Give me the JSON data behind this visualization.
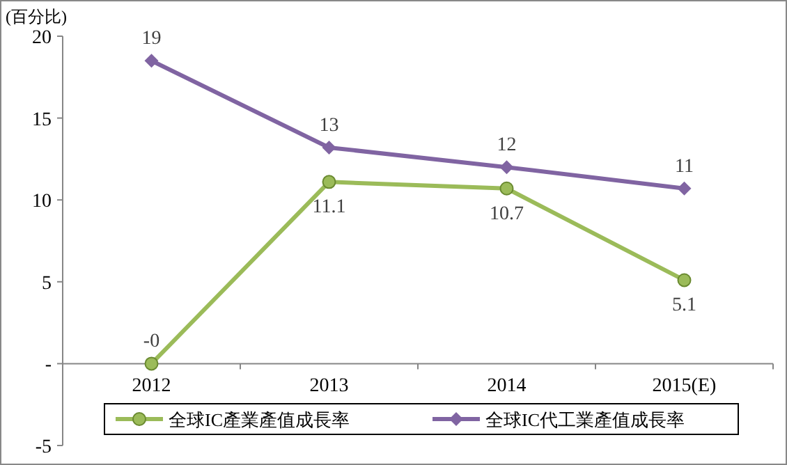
{
  "chart_data": {
    "type": "line",
    "ylabel": "(百分比)",
    "categories": [
      "2012",
      "2013",
      "2014",
      "2015(E)"
    ],
    "series": [
      {
        "name": "全球IC產業產值成長率",
        "color": "#9bbb59",
        "marker": "circle",
        "values": [
          0,
          11.1,
          10.7,
          5.1
        ],
        "value_labels": [
          "-0",
          "11.1",
          "10.7",
          "5.1"
        ]
      },
      {
        "name": "全球IC代工業產值成長率",
        "color": "#8064a2",
        "marker": "diamond",
        "values": [
          18.5,
          13.2,
          12.0,
          10.7
        ],
        "value_labels": [
          "19",
          "13",
          "12",
          "11"
        ]
      }
    ],
    "ylim": [
      -5,
      20
    ],
    "yticks": [
      -5,
      {
        "value": 0,
        "label": "-"
      },
      5,
      10,
      15,
      20
    ],
    "grid": false,
    "legend": "bottom"
  }
}
